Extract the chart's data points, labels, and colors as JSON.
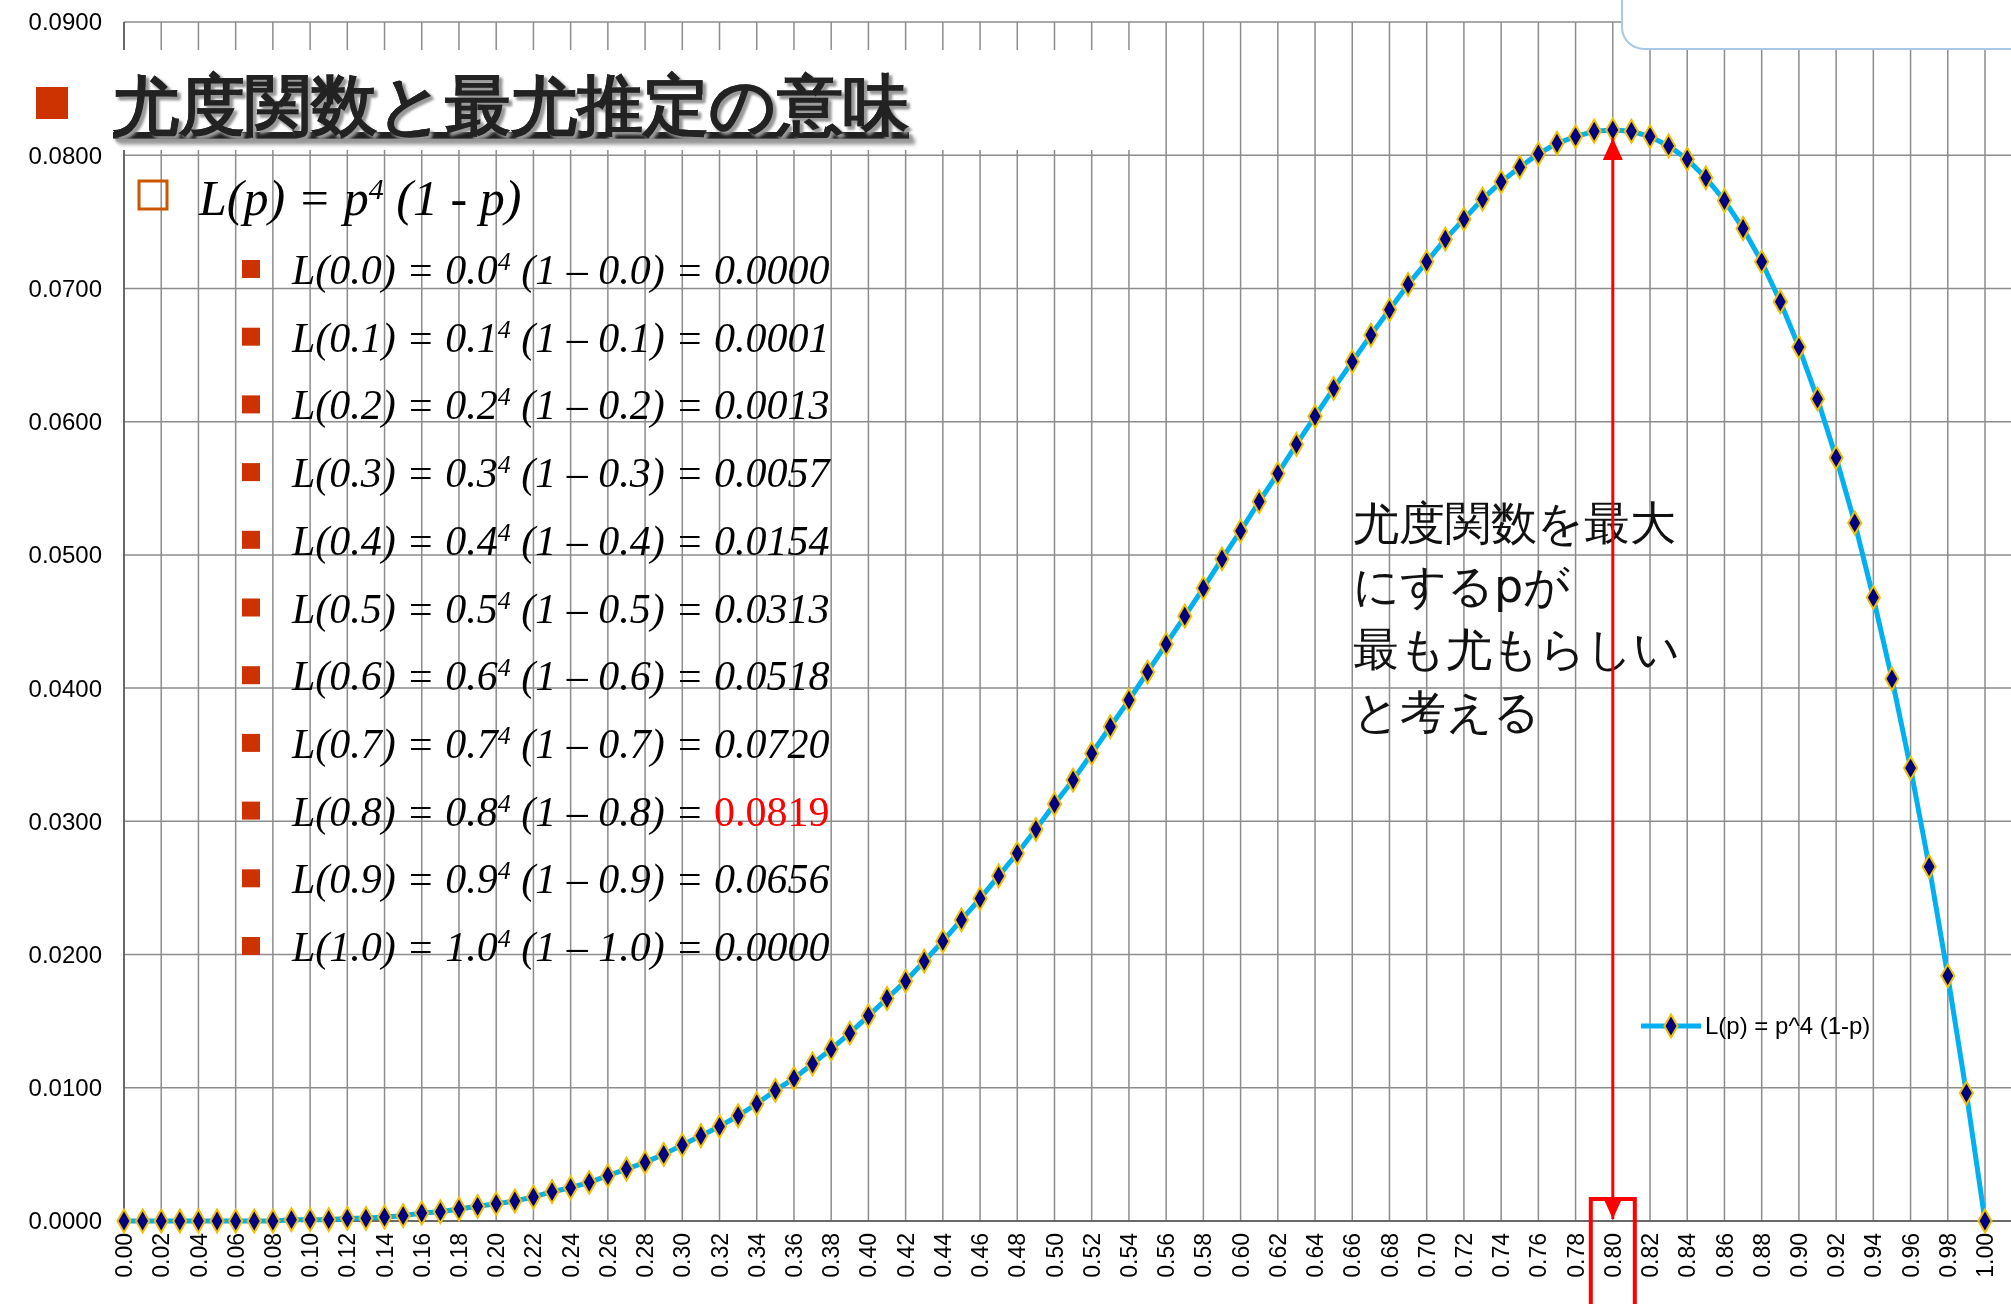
{
  "chart_data": {
    "type": "line",
    "title": "尤度関数と最尤推定の意味",
    "subtitle": "L(p) = p$^{4}$ (1 - p)",
    "annotations": [
      "L(0.0) = 0.0$^{4}$ (1 – 0.0) = 0.0000",
      "L(0.1) = 0.1$^{4}$ (1 – 0.1) = 0.0001",
      "L(0.2) = 0.2$^{4}$ (1 – 0.2) = 0.0013",
      "L(0.3) = 0.3$^{4}$ (1 – 0.3) = 0.0057",
      "L(0.4) = 0.4$^{4}$ (1 – 0.4) = 0.0154",
      "L(0.5) = 0.5$^{4}$ (1 – 0.5) = 0.0313",
      "L(0.6) = 0.6$^{4}$ (1 – 0.6) = 0.0518",
      "L(0.7) = 0.7$^{4}$ (1 – 0.7) = 0.0720",
      "L(0.8) = 0.8$^{4}$ (1 – 0.8) =",
      "0.0819",
      "L(0.9) = 0.9$^{4}$ (1 – 0.9) = 0.0656",
      "L(1.0) = 1.0$^{4}$ (1 – 1.0) = 0.0000",
      "尤度関数を最大",
      "にするpが",
      "最も尤もらしい",
      "と考える"
    ],
    "x": [
      0,
      0.01,
      0.02,
      0.03,
      0.04,
      0.05,
      0.06,
      0.07,
      0.08,
      0.09,
      0.1,
      0.11,
      0.12,
      0.13,
      0.14,
      0.15,
      0.16,
      0.17,
      0.18,
      0.19,
      0.2,
      0.21,
      0.22,
      0.23,
      0.24,
      0.25,
      0.26,
      0.27,
      0.28,
      0.29,
      0.3,
      0.31,
      0.32,
      0.33,
      0.34,
      0.35,
      0.36,
      0.37,
      0.38,
      0.39,
      0.4,
      0.41,
      0.42,
      0.43,
      0.44,
      0.45,
      0.46,
      0.47,
      0.48,
      0.49,
      0.5,
      0.51,
      0.52,
      0.53,
      0.54,
      0.55,
      0.56,
      0.57,
      0.58,
      0.59,
      0.6,
      0.61,
      0.62,
      0.63,
      0.64,
      0.65,
      0.66,
      0.67,
      0.68,
      0.69,
      0.7,
      0.71,
      0.72,
      0.73,
      0.74,
      0.75,
      0.76,
      0.77,
      0.78,
      0.79,
      0.8,
      0.81,
      0.82,
      0.83,
      0.84,
      0.85,
      0.86,
      0.87,
      0.88,
      0.89,
      0.9,
      0.91,
      0.92,
      0.93,
      0.94,
      0.95,
      0.96,
      0.97,
      0.98,
      0.99,
      1.0
    ],
    "series": [
      {
        "name": "L(p) = p^4 (1-p)",
        "color": "#00b0f0",
        "values": [
          0,
          0,
          0,
          0,
          0,
          0,
          0,
          0,
          0,
          0.0001,
          0.0001,
          0.0001,
          0.0002,
          0.0002,
          0.0003,
          0.0004,
          0.0006,
          0.0007,
          0.0009,
          0.0011,
          0.0013,
          0.0015,
          0.0018,
          0.0022,
          0.0025,
          0.0029,
          0.0034,
          0.0039,
          0.0044,
          0.005,
          0.0057,
          0.0064,
          0.0071,
          0.0079,
          0.0088,
          0.0098,
          0.0107,
          0.0118,
          0.0129,
          0.0141,
          0.0154,
          0.0167,
          0.018,
          0.0195,
          0.021,
          0.0226,
          0.0242,
          0.0259,
          0.0276,
          0.0294,
          0.0313,
          0.0331,
          0.0351,
          0.0371,
          0.0391,
          0.0412,
          0.0433,
          0.0454,
          0.0475,
          0.0497,
          0.0518,
          0.054,
          0.0561,
          0.0583,
          0.0604,
          0.0625,
          0.0645,
          0.0665,
          0.0684,
          0.0703,
          0.072,
          0.0737,
          0.0752,
          0.0767,
          0.078,
          0.0791,
          0.0801,
          0.0809,
          0.0814,
          0.0818,
          0.0819,
          0.0818,
          0.0814,
          0.0807,
          0.0797,
          0.0783,
          0.0766,
          0.0745,
          0.072,
          0.069,
          0.0656,
          0.0617,
          0.0573,
          0.0524,
          0.0468,
          0.0407,
          0.034,
          0.0266,
          0.0184,
          0.0096,
          0
        ]
      }
    ],
    "xlim": [
      0,
      1
    ],
    "xticks": [
      {
        "value": 0,
        "label": "0.00"
      },
      {
        "value": 0.02,
        "label": "0.02"
      },
      {
        "value": 0.04,
        "label": "0.04"
      },
      {
        "value": 0.06,
        "label": "0.06"
      },
      {
        "value": 0.08,
        "label": "0.08"
      },
      {
        "value": 0.1,
        "label": "0.10"
      },
      {
        "value": 0.12,
        "label": "0.12"
      },
      {
        "value": 0.14,
        "label": "0.14"
      },
      {
        "value": 0.16,
        "label": "0.16"
      },
      {
        "value": 0.18,
        "label": "0.18"
      },
      {
        "value": 0.2,
        "label": "0.20"
      },
      {
        "value": 0.22,
        "label": "0.22"
      },
      {
        "value": 0.24,
        "label": "0.24"
      },
      {
        "value": 0.26,
        "label": "0.26"
      },
      {
        "value": 0.28,
        "label": "0.28"
      },
      {
        "value": 0.3,
        "label": "0.30"
      },
      {
        "value": 0.32,
        "label": "0.32"
      },
      {
        "value": 0.34,
        "label": "0.34"
      },
      {
        "value": 0.36,
        "label": "0.36"
      },
      {
        "value": 0.38,
        "label": "0.38"
      },
      {
        "value": 0.4,
        "label": "0.40"
      },
      {
        "value": 0.42,
        "label": "0.42"
      },
      {
        "value": 0.44,
        "label": "0.44"
      },
      {
        "value": 0.46,
        "label": "0.46"
      },
      {
        "value": 0.48,
        "label": "0.48"
      },
      {
        "value": 0.5,
        "label": "0.50"
      },
      {
        "value": 0.52,
        "label": "0.52"
      },
      {
        "value": 0.54,
        "label": "0.54"
      },
      {
        "value": 0.56,
        "label": "0.56"
      },
      {
        "value": 0.58,
        "label": "0.58"
      },
      {
        "value": 0.6,
        "label": "0.60"
      },
      {
        "value": 0.62,
        "label": "0.62"
      },
      {
        "value": 0.64,
        "label": "0.64"
      },
      {
        "value": 0.66,
        "label": "0.66"
      },
      {
        "value": 0.68,
        "label": "0.68"
      },
      {
        "value": 0.7,
        "label": "0.70"
      },
      {
        "value": 0.72,
        "label": "0.72"
      },
      {
        "value": 0.74,
        "label": "0.74"
      },
      {
        "value": 0.76,
        "label": "0.76"
      },
      {
        "value": 0.78,
        "label": "0.78"
      },
      {
        "value": 0.8,
        "label": "0.80"
      },
      {
        "value": 0.82,
        "label": "0.82"
      },
      {
        "value": 0.84,
        "label": "0.84"
      },
      {
        "value": 0.86,
        "label": "0.86"
      },
      {
        "value": 0.88,
        "label": "0.88"
      },
      {
        "value": 0.9,
        "label": "0.90"
      },
      {
        "value": 0.92,
        "label": "0.92"
      },
      {
        "value": 0.94,
        "label": "0.94"
      },
      {
        "value": 0.96,
        "label": "0.96"
      },
      {
        "value": 0.98,
        "label": "0.98"
      },
      {
        "value": 1,
        "label": "1.00"
      }
    ],
    "ylim": [
      0,
      0.09
    ],
    "yticks": [
      {
        "value": 0,
        "label": "0.0000"
      },
      {
        "value": 0.01,
        "label": "0.0100"
      },
      {
        "value": 0.02,
        "label": "0.0200"
      },
      {
        "value": 0.03,
        "label": "0.0300"
      },
      {
        "value": 0.04,
        "label": "0.0400"
      },
      {
        "value": 0.05,
        "label": "0.0500"
      },
      {
        "value": 0.06,
        "label": "0.0600"
      },
      {
        "value": 0.07,
        "label": "0.0700"
      },
      {
        "value": 0.08,
        "label": "0.0800"
      },
      {
        "value": 0.09,
        "label": "0.0900"
      }
    ],
    "ref_lines": [
      {
        "axis": "x",
        "value": 0.8,
        "color": "#ff0000"
      }
    ],
    "grid": true,
    "legend": "right",
    "marker": "diamond",
    "line_style": "solid"
  }
}
